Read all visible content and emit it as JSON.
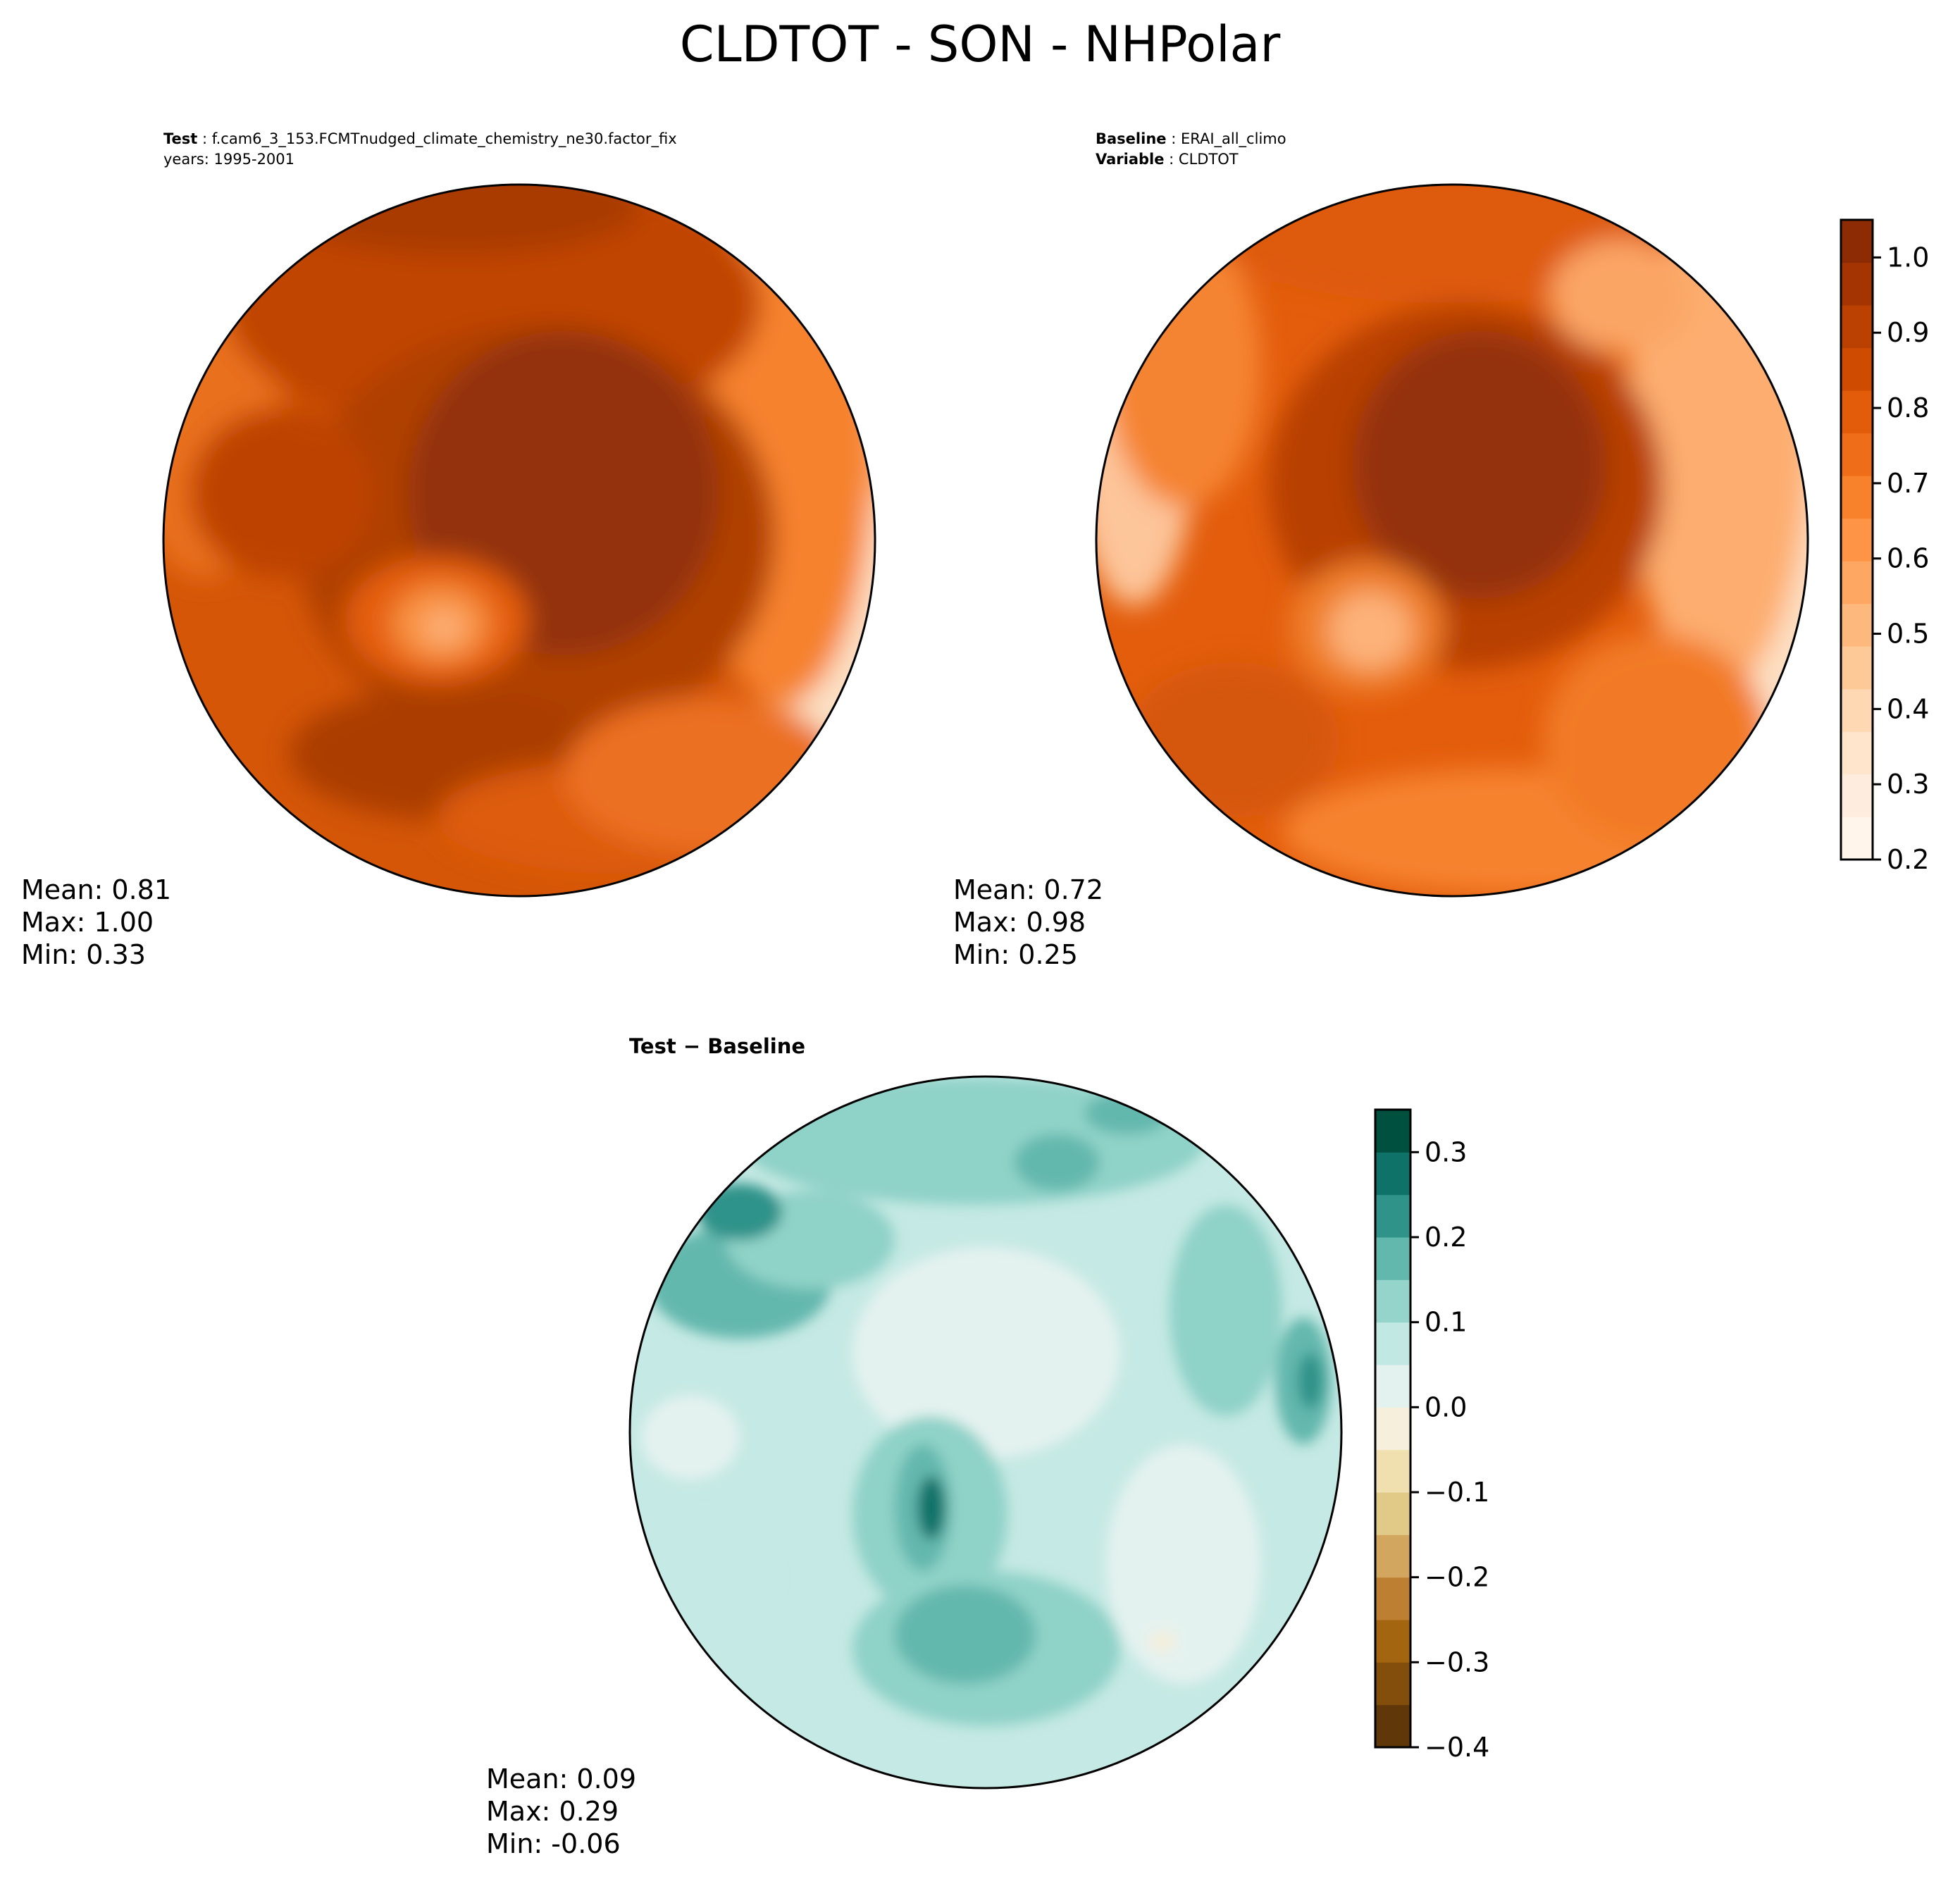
{
  "figure": {
    "suptitle": "CLDTOT - SON - NHPolar"
  },
  "panels": {
    "test": {
      "label": "Test",
      "case_name": "f.cam6_3_153.FCMTnudged_climate_chemistry_ne30.factor_fix",
      "years": "years: 1995-2001",
      "stats": {
        "mean": "Mean:  0.81",
        "max": "Max:  1.00",
        "min": "Min:  0.33"
      }
    },
    "baseline": {
      "label": "Baseline",
      "case_name": "ERAI_all_climo",
      "variable_label": "Variable",
      "variable": "CLDTOT",
      "stats": {
        "mean": "Mean:  0.72",
        "max": "Max:  0.98",
        "min": "Min:  0.25"
      }
    },
    "diff": {
      "title": "Test − Baseline",
      "stats": {
        "mean": "Mean:  0.09",
        "max": "Max:  0.29",
        "min": "Min: -0.06"
      }
    }
  },
  "colorbars": {
    "main": {
      "ticks": [
        "0.2",
        "0.3",
        "0.4",
        "0.5",
        "0.6",
        "0.7",
        "0.8",
        "0.9",
        "1.0"
      ],
      "range": [
        0.2,
        1.05
      ],
      "colors": [
        "#fff5eb",
        "#feedde",
        "#fee5cb",
        "#fdd8b3",
        "#fdc997",
        "#fdb97d",
        "#fda762",
        "#fd9446",
        "#f8812c",
        "#ef6d18",
        "#e25c09",
        "#cf4b02",
        "#ba4102",
        "#a43503",
        "#8d2c04"
      ]
    },
    "diff": {
      "ticks": [
        "−0.4",
        "−0.3",
        "−0.2",
        "−0.1",
        "0.0",
        "0.1",
        "0.2",
        "0.3"
      ],
      "range": [
        -0.4,
        0.35
      ],
      "colors": [
        "#603708",
        "#834e0b",
        "#a3650f",
        "#bd8032",
        "#d2a65e",
        "#e1c988",
        "#f0e0b0",
        "#f5efdb",
        "#e3f2ef",
        "#c2e8e3",
        "#94d4ca",
        "#63b8ad",
        "#2f938a",
        "#0e7269",
        "#00503f"
      ]
    }
  },
  "maps": {
    "test": {
      "colormap": "Oranges",
      "regions": [
        "ocean-warm",
        "arctic-basin-core",
        "greenland-minimum",
        "north-atlantic-band",
        "pacific-edge",
        "eurasia-edge",
        "north-america-edge"
      ]
    },
    "baseline": {
      "colormap": "Oranges",
      "regions": [
        "ocean-warm",
        "arctic-basin-core",
        "greenland-minimum",
        "north-atlantic-band",
        "pacific-edge",
        "eurasia-edge",
        "north-america-edge"
      ]
    },
    "diff": {
      "colormap": "BrBG",
      "regions": [
        "background-positive",
        "arctic-basin-near-zero",
        "greenland-positive-max",
        "atlantic-positive",
        "pacific-positive",
        "siberia-near-zero"
      ]
    }
  }
}
